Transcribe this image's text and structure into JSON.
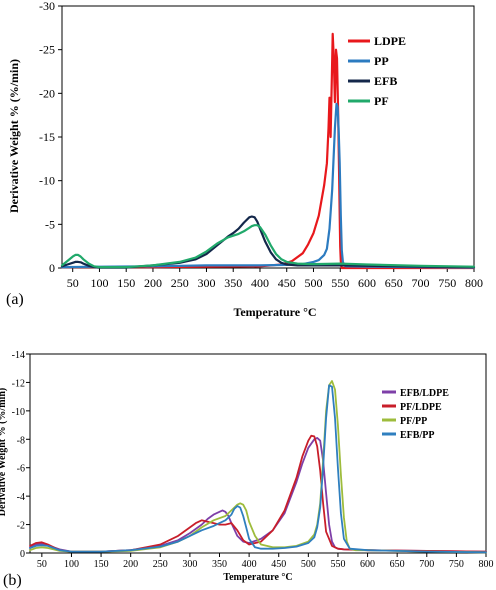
{
  "chart_data": [
    {
      "type": "line",
      "panel_label": "(a)",
      "xlabel": "Temperature °C",
      "ylabel": "Derivative Weight % (%/min)",
      "xlim": [
        30,
        800
      ],
      "ylim": [
        0,
        -30
      ],
      "x_ticks": [
        50,
        100,
        150,
        200,
        250,
        300,
        350,
        400,
        450,
        500,
        550,
        600,
        650,
        700,
        750,
        800
      ],
      "y_ticks": [
        0,
        -5,
        -10,
        -15,
        -20,
        -25,
        -30
      ],
      "legend_position": "top-right",
      "series": [
        {
          "name": "LDPE",
          "color": "#e8181c",
          "width": 2.2,
          "x": [
            30,
            100,
            200,
            300,
            400,
            440,
            460,
            480,
            490,
            500,
            510,
            520,
            525,
            528,
            530,
            532,
            534,
            536,
            538,
            540,
            542,
            544,
            546,
            548,
            549,
            550,
            551,
            552,
            553,
            600,
            700,
            800
          ],
          "y": [
            -0.1,
            -0.1,
            -0.1,
            -0.15,
            -0.2,
            -0.4,
            -0.8,
            -1.7,
            -2.7,
            -4.0,
            -6.0,
            -9.5,
            -12,
            -16,
            -19.5,
            -15,
            -21,
            -26.8,
            -24,
            -19,
            -25,
            -24,
            -18,
            -10,
            -6,
            -2.5,
            -0.8,
            -0.2,
            0,
            0,
            0,
            0
          ]
        },
        {
          "name": "PP",
          "color": "#2c7bc0",
          "width": 2.2,
          "x": [
            30,
            100,
            200,
            300,
            400,
            450,
            480,
            500,
            510,
            520,
            525,
            530,
            535,
            540,
            543,
            545,
            547,
            549,
            551,
            553,
            555,
            558,
            560,
            600,
            700,
            800
          ],
          "y": [
            -0.1,
            -0.15,
            -0.2,
            -0.3,
            -0.3,
            -0.35,
            -0.45,
            -0.7,
            -0.9,
            -1.5,
            -2.2,
            -4.5,
            -9,
            -16,
            -18.8,
            -18.5,
            -16,
            -12,
            -6,
            -2,
            -0.7,
            -0.3,
            -0.2,
            -0.15,
            -0.1,
            -0.05
          ]
        },
        {
          "name": "EFB",
          "color": "#14284b",
          "width": 2.2,
          "x": [
            30,
            40,
            50,
            55,
            60,
            65,
            70,
            80,
            90,
            100,
            150,
            200,
            250,
            280,
            300,
            320,
            340,
            350,
            360,
            370,
            380,
            385,
            390,
            395,
            400,
            410,
            420,
            430,
            440,
            450,
            470,
            500,
            550,
            600,
            700,
            800
          ],
          "y": [
            -0.2,
            -0.4,
            -0.6,
            -0.7,
            -0.7,
            -0.65,
            -0.5,
            -0.25,
            -0.1,
            -0.05,
            -0.05,
            -0.3,
            -0.6,
            -1.0,
            -1.6,
            -2.6,
            -3.6,
            -4.0,
            -4.5,
            -5.2,
            -5.8,
            -5.9,
            -5.8,
            -5.3,
            -4.5,
            -3.0,
            -1.8,
            -1.0,
            -0.6,
            -0.4,
            -0.3,
            -0.3,
            -0.3,
            -0.25,
            -0.15,
            -0.1
          ]
        },
        {
          "name": "PF",
          "color": "#21a96b",
          "width": 2.2,
          "x": [
            30,
            40,
            50,
            55,
            60,
            65,
            70,
            80,
            90,
            100,
            150,
            200,
            250,
            280,
            300,
            320,
            340,
            350,
            360,
            370,
            380,
            385,
            390,
            395,
            400,
            410,
            420,
            430,
            440,
            450,
            470,
            500,
            550,
            600,
            700,
            800
          ],
          "y": [
            -0.3,
            -0.8,
            -1.3,
            -1.5,
            -1.5,
            -1.3,
            -1.0,
            -0.5,
            -0.2,
            -0.1,
            -0.1,
            -0.3,
            -0.7,
            -1.2,
            -1.9,
            -2.8,
            -3.5,
            -3.7,
            -3.9,
            -4.2,
            -4.6,
            -4.8,
            -4.9,
            -4.9,
            -4.7,
            -3.8,
            -2.6,
            -1.6,
            -1.0,
            -0.7,
            -0.5,
            -0.45,
            -0.5,
            -0.4,
            -0.25,
            -0.15
          ]
        }
      ]
    },
    {
      "type": "line",
      "panel_label": "(b)",
      "xlabel": "Temperature °C",
      "ylabel": "Derivative Weight % (%/min)",
      "xlim": [
        30,
        800
      ],
      "ylim": [
        0,
        -14
      ],
      "x_ticks": [
        50,
        100,
        150,
        200,
        250,
        300,
        350,
        400,
        450,
        500,
        550,
        600,
        650,
        700,
        750,
        800
      ],
      "y_ticks": [
        0,
        -2,
        -4,
        -6,
        -8,
        -10,
        -12,
        -14
      ],
      "legend_position": "right",
      "series": [
        {
          "name": "EFB/LDPE",
          "color": "#7e3fa8",
          "width": 1.8,
          "x": [
            30,
            40,
            50,
            60,
            70,
            80,
            100,
            150,
            200,
            250,
            280,
            300,
            320,
            330,
            340,
            350,
            355,
            360,
            365,
            370,
            380,
            390,
            400,
            420,
            440,
            460,
            480,
            490,
            500,
            510,
            515,
            520,
            525,
            530,
            535,
            540,
            545,
            550,
            560,
            600,
            700,
            800
          ],
          "y": [
            -0.4,
            -0.6,
            -0.65,
            -0.55,
            -0.4,
            -0.25,
            -0.1,
            -0.1,
            -0.2,
            -0.5,
            -0.9,
            -1.4,
            -2.0,
            -2.4,
            -2.7,
            -2.9,
            -3.0,
            -2.9,
            -2.6,
            -2.1,
            -1.2,
            -0.8,
            -0.7,
            -1.0,
            -1.6,
            -2.8,
            -5.0,
            -6.3,
            -7.4,
            -8.0,
            -8.1,
            -7.9,
            -6.5,
            -4.2,
            -2.0,
            -0.8,
            -0.4,
            -0.3,
            -0.25,
            -0.2,
            -0.15,
            -0.1
          ]
        },
        {
          "name": "PF/LDPE",
          "color": "#c81e2a",
          "width": 1.8,
          "x": [
            30,
            40,
            50,
            60,
            70,
            80,
            100,
            150,
            200,
            250,
            280,
            300,
            310,
            320,
            330,
            340,
            350,
            360,
            370,
            380,
            390,
            400,
            420,
            440,
            460,
            480,
            490,
            500,
            505,
            510,
            515,
            520,
            525,
            530,
            540,
            550,
            560,
            600,
            700,
            800
          ],
          "y": [
            -0.5,
            -0.7,
            -0.75,
            -0.6,
            -0.4,
            -0.2,
            -0.1,
            -0.1,
            -0.2,
            -0.6,
            -1.2,
            -1.8,
            -2.1,
            -2.3,
            -2.2,
            -2.1,
            -2.0,
            -2.0,
            -2.1,
            -1.6,
            -0.9,
            -0.6,
            -0.8,
            -1.6,
            -3.0,
            -5.3,
            -6.8,
            -7.9,
            -8.25,
            -8.2,
            -7.5,
            -5.8,
            -3.5,
            -1.5,
            -0.5,
            -0.3,
            -0.25,
            -0.2,
            -0.15,
            -0.1
          ]
        },
        {
          "name": "PF/PP",
          "color": "#9ebc3c",
          "width": 1.8,
          "x": [
            30,
            40,
            50,
            60,
            70,
            80,
            100,
            150,
            200,
            250,
            280,
            300,
            320,
            340,
            360,
            370,
            380,
            385,
            390,
            395,
            400,
            410,
            420,
            440,
            460,
            480,
            500,
            510,
            515,
            520,
            525,
            530,
            535,
            540,
            545,
            550,
            555,
            560,
            565,
            570,
            580,
            600,
            700,
            800
          ],
          "y": [
            -0.2,
            -0.35,
            -0.4,
            -0.35,
            -0.25,
            -0.15,
            -0.1,
            -0.1,
            -0.15,
            -0.4,
            -0.8,
            -1.2,
            -1.8,
            -2.3,
            -2.6,
            -3.0,
            -3.4,
            -3.5,
            -3.4,
            -3.0,
            -2.2,
            -1.2,
            -0.6,
            -0.4,
            -0.4,
            -0.5,
            -0.8,
            -1.3,
            -2.0,
            -3.5,
            -6.5,
            -10.0,
            -11.8,
            -12.1,
            -11.5,
            -9.0,
            -5.5,
            -2.5,
            -0.8,
            -0.3,
            -0.2,
            -0.2,
            -0.1,
            -0.05
          ]
        },
        {
          "name": "EFB/PP",
          "color": "#2f7fbf",
          "width": 1.8,
          "x": [
            30,
            40,
            50,
            60,
            70,
            80,
            100,
            150,
            200,
            250,
            280,
            300,
            320,
            340,
            350,
            360,
            370,
            375,
            380,
            385,
            390,
            395,
            400,
            410,
            420,
            440,
            460,
            480,
            500,
            510,
            515,
            520,
            525,
            530,
            535,
            540,
            545,
            550,
            555,
            560,
            570,
            600,
            700,
            800
          ],
          "y": [
            -0.35,
            -0.5,
            -0.55,
            -0.5,
            -0.35,
            -0.2,
            -0.1,
            -0.1,
            -0.2,
            -0.45,
            -0.8,
            -1.2,
            -1.6,
            -1.9,
            -2.1,
            -2.3,
            -2.7,
            -3.1,
            -3.3,
            -3.2,
            -2.6,
            -1.8,
            -1.0,
            -0.4,
            -0.3,
            -0.3,
            -0.35,
            -0.45,
            -0.7,
            -1.1,
            -1.8,
            -3.2,
            -6.0,
            -9.5,
            -11.8,
            -11.7,
            -9.5,
            -6.0,
            -2.8,
            -1.0,
            -0.3,
            -0.2,
            -0.1,
            -0.05
          ]
        }
      ]
    }
  ]
}
